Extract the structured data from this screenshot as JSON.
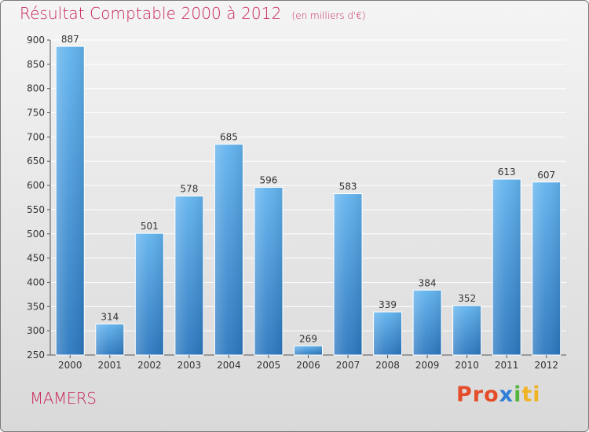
{
  "header": {
    "title": "Résultat Comptable 2000 à 2012",
    "subtitle": "(en milliers d'€)"
  },
  "footer": {
    "town": "MAMERS",
    "brand": {
      "parts": [
        "Pro",
        "x",
        "i",
        "ti"
      ]
    }
  },
  "chart_data": {
    "type": "bar",
    "title": "Résultat Comptable 2000 à 2012",
    "subtitle": "(en milliers d'€)",
    "categories": [
      "2000",
      "2001",
      "2002",
      "2003",
      "2004",
      "2005",
      "2006",
      "2007",
      "2008",
      "2009",
      "2010",
      "2011",
      "2012"
    ],
    "values": [
      887,
      314,
      501,
      578,
      685,
      596,
      269,
      583,
      339,
      384,
      352,
      613,
      607
    ],
    "xlabel": "",
    "ylabel": "",
    "ylim": [
      250,
      900
    ],
    "yticks": [
      250,
      300,
      350,
      400,
      450,
      500,
      550,
      600,
      650,
      700,
      750,
      800,
      850,
      900
    ],
    "grid": true,
    "colors": {
      "bar_top": "#62b3ee",
      "bar_bottom": "#2c78bf",
      "grid": "#ffffff",
      "title": "#c8285a"
    }
  }
}
